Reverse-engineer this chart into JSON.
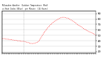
{
  "title": "Milwaukee Weather  Outdoor Temperature (Red)  vs Heat Index (Blue)  per Minute  (24 Hours)",
  "ylabel_right_ticks": [
    20,
    30,
    40,
    50,
    60,
    70,
    80,
    90
  ],
  "ylim": [
    18,
    95
  ],
  "xlim": [
    0,
    1440
  ],
  "vline_x": 330,
  "line_color": "#ff0000",
  "background_color": "#ffffff",
  "minutes": [
    0,
    30,
    60,
    90,
    120,
    150,
    180,
    210,
    240,
    270,
    300,
    330,
    360,
    390,
    420,
    450,
    480,
    510,
    540,
    570,
    600,
    630,
    660,
    690,
    720,
    750,
    780,
    810,
    840,
    870,
    900,
    930,
    960,
    990,
    1020,
    1050,
    1080,
    1110,
    1140,
    1170,
    1200,
    1230,
    1260,
    1290,
    1320,
    1350,
    1380,
    1410,
    1440
  ],
  "temps": [
    44,
    44,
    43,
    43,
    42,
    42,
    41,
    41,
    40,
    40,
    39,
    39,
    38,
    37,
    36,
    35,
    35,
    36,
    37,
    40,
    46,
    52,
    57,
    62,
    66,
    70,
    73,
    76,
    78,
    80,
    82,
    83,
    83,
    82,
    81,
    79,
    77,
    75,
    72,
    69,
    67,
    65,
    62,
    60,
    58,
    56,
    55,
    53,
    50
  ],
  "grid_color": "#aaaaaa",
  "tick_color": "#000000"
}
